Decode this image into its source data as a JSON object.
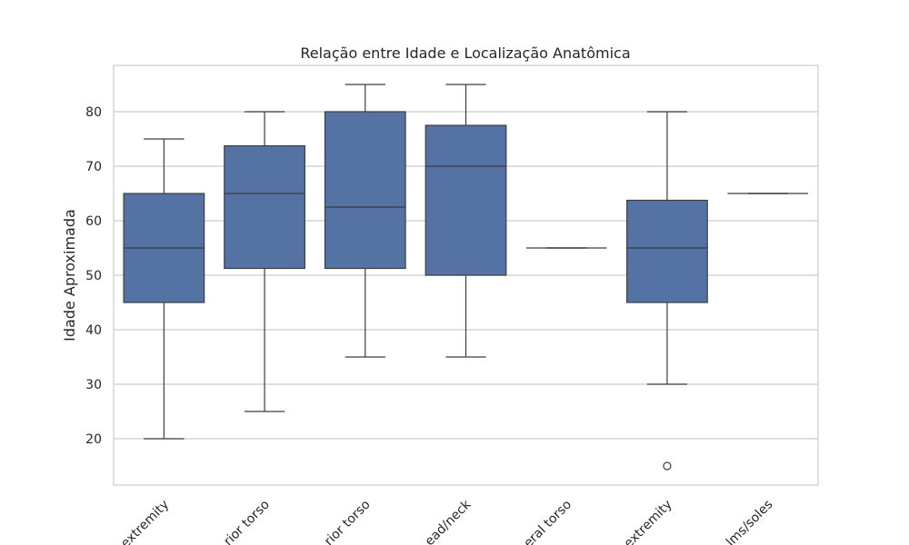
{
  "chart_data": {
    "type": "box",
    "title": "Relação entre Idade e Localização Anatômica",
    "xlabel": "",
    "ylabel": "Idade Aproximada",
    "ylim": [
      11.5,
      88.5
    ],
    "yticks": [
      20,
      30,
      40,
      50,
      60,
      70,
      80
    ],
    "grid": true,
    "box_color": "#5572a5",
    "edge_color": "#3d3d3d",
    "categories": [
      "extremity",
      "rior torso",
      "rior torso",
      "ead/neck",
      "eral torso",
      "extremity",
      "lms/soles"
    ],
    "boxes": [
      {
        "whislo": 20,
        "q1": 45,
        "med": 55,
        "q3": 65,
        "whishi": 75,
        "fliers": []
      },
      {
        "whislo": 25,
        "q1": 51.25,
        "med": 65,
        "q3": 73.75,
        "whishi": 80,
        "fliers": []
      },
      {
        "whislo": 35,
        "q1": 51.25,
        "med": 62.5,
        "q3": 80,
        "whishi": 85,
        "fliers": []
      },
      {
        "whislo": 35,
        "q1": 50,
        "med": 70,
        "q3": 77.5,
        "whishi": 85,
        "fliers": []
      },
      {
        "whislo": 55,
        "q1": 55,
        "med": 55,
        "q3": 55,
        "whishi": 55,
        "fliers": []
      },
      {
        "whislo": 30,
        "q1": 45,
        "med": 55,
        "q3": 63.75,
        "whishi": 80,
        "fliers": [
          15
        ]
      },
      {
        "whislo": 65,
        "q1": 65,
        "med": 65,
        "q3": 65,
        "whishi": 65,
        "fliers": []
      }
    ]
  }
}
